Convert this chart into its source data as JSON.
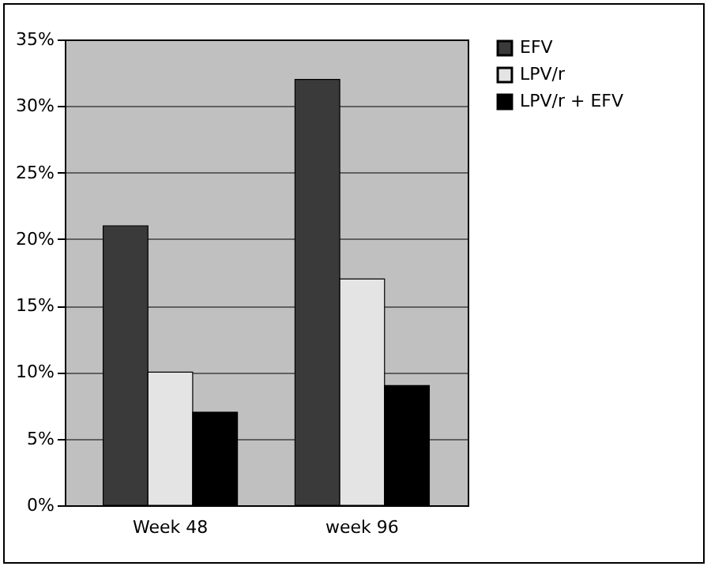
{
  "chart_data": {
    "type": "bar",
    "categories": [
      "Week 48",
      "week 96"
    ],
    "series": [
      {
        "name": "EFV",
        "color": "#3a3a3a",
        "values": [
          21,
          32
        ]
      },
      {
        "name": "LPV/r",
        "color": "#e4e4e4",
        "values": [
          10,
          17
        ]
      },
      {
        "name": "LPV/r + EFV",
        "color": "#000000",
        "values": [
          7,
          9
        ]
      }
    ],
    "ylim": [
      0,
      35
    ],
    "yticks": [
      {
        "value": 0,
        "label": "0%"
      },
      {
        "value": 5,
        "label": "5%"
      },
      {
        "value": 10,
        "label": "10%"
      },
      {
        "value": 15,
        "label": "15%"
      },
      {
        "value": 20,
        "label": "20%"
      },
      {
        "value": 25,
        "label": "25%"
      },
      {
        "value": 30,
        "label": "30%"
      },
      {
        "value": 35,
        "label": "35%"
      }
    ],
    "grid": "y",
    "legend": "right"
  }
}
